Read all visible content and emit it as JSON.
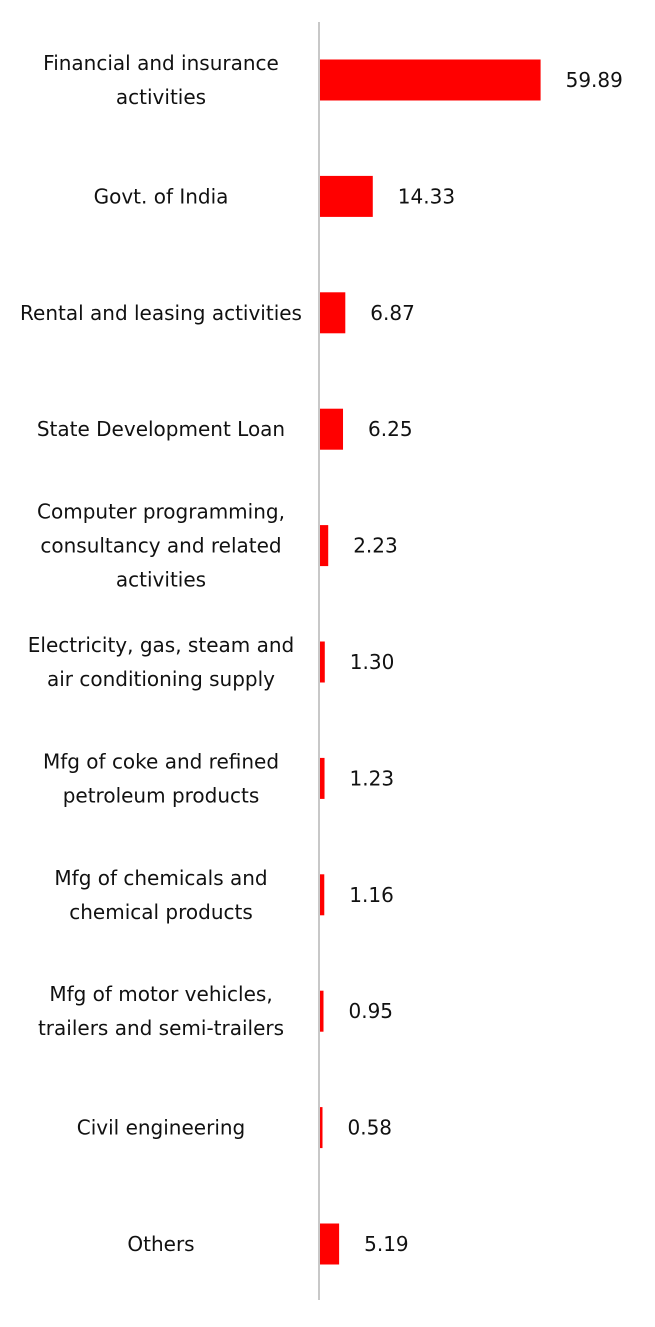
{
  "chart_data": {
    "type": "bar",
    "orientation": "horizontal",
    "title": "",
    "xlabel": "",
    "ylabel": "",
    "categories": [
      [
        "Financial and insurance",
        "activities"
      ],
      [
        "Govt. of India"
      ],
      [
        "Rental and leasing activities"
      ],
      [
        "State Development Loan"
      ],
      [
        "Computer programming,",
        "consultancy and related",
        "activities"
      ],
      [
        "Electricity, gas, steam and",
        "air conditioning supply"
      ],
      [
        "Mfg of coke and refined",
        "petroleum products"
      ],
      [
        "Mfg of chemicals and",
        "chemical products"
      ],
      [
        "Mfg of motor vehicles,",
        "trailers and semi-trailers"
      ],
      [
        "Civil engineering"
      ],
      [
        "Others"
      ]
    ],
    "values": [
      59.89,
      14.33,
      6.87,
      6.25,
      2.23,
      1.3,
      1.23,
      1.16,
      0.95,
      0.58,
      5.19
    ],
    "value_labels": [
      "59.89",
      "14.33",
      "6.87",
      "6.25",
      "2.23",
      "1.30",
      "1.23",
      "1.16",
      "0.95",
      "0.58",
      "5.19"
    ],
    "xlim": [
      0,
      60
    ],
    "grid": false,
    "legend": "none",
    "bar_color": "#ff0000",
    "axis_color": "#c8c8c8"
  }
}
